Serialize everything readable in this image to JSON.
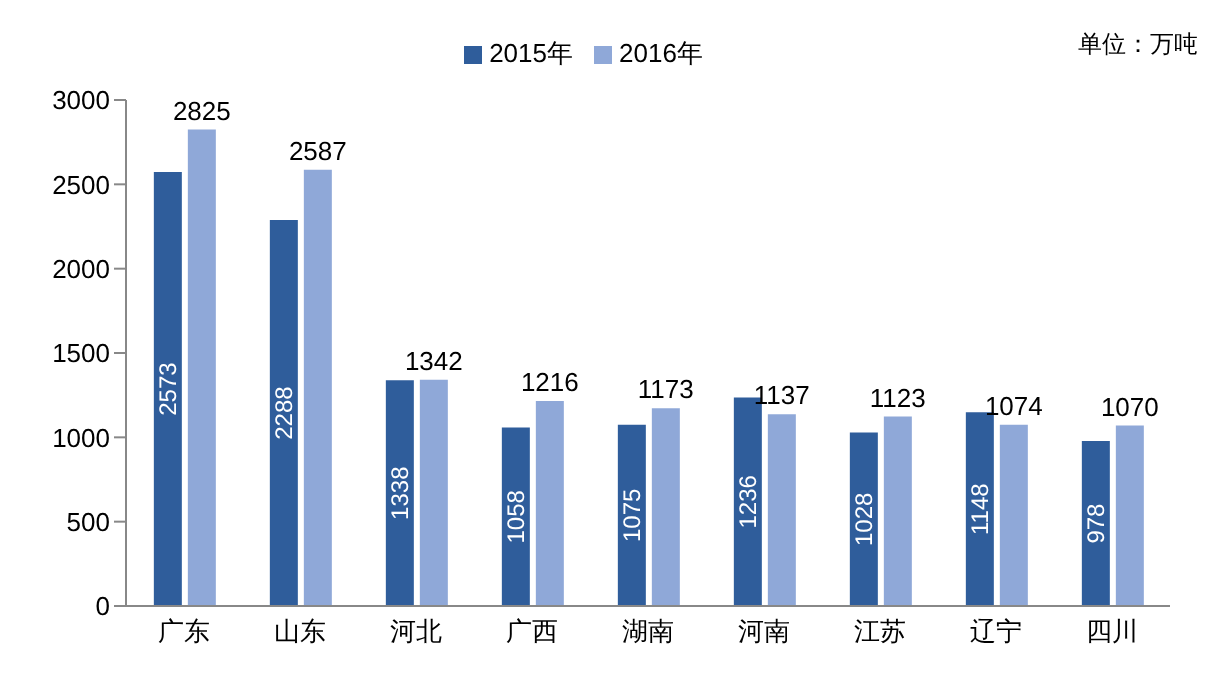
{
  "chart_data": {
    "type": "bar",
    "categories": [
      "广东",
      "山东",
      "河北",
      "广西",
      "湖南",
      "河南",
      "江苏",
      "辽宁",
      "四川"
    ],
    "series": [
      {
        "name": "2015年",
        "color": "#2f5d9b",
        "values": [
          2573,
          2288,
          1338,
          1058,
          1075,
          1236,
          1028,
          1148,
          978
        ]
      },
      {
        "name": "2016年",
        "color": "#8fa8d8",
        "values": [
          2825,
          2587,
          1342,
          1216,
          1173,
          1137,
          1123,
          1074,
          1070
        ]
      }
    ],
    "ylim": [
      0,
      3000
    ],
    "yticks": [
      0,
      500,
      1000,
      1500,
      2000,
      2500,
      3000
    ],
    "grid": false,
    "legend": "top",
    "data_labels": true,
    "annotations": [
      "单位：万吨"
    ]
  }
}
